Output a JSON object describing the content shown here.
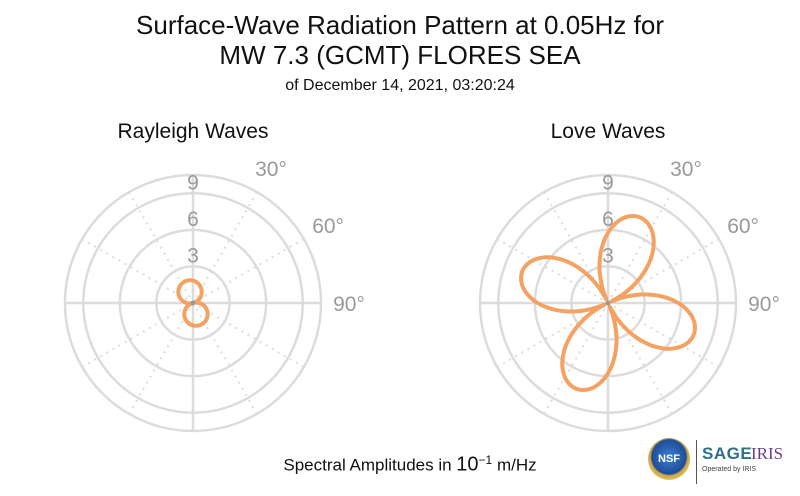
{
  "title": {
    "line1": "Surface-Wave Radiation Pattern at 0.05Hz for",
    "line2": "MW 7.3 (GCMT) FLORES SEA",
    "line3": "of December 14, 2021, 03:20:24"
  },
  "footer": {
    "prefix": "Spectral Amplitudes in ",
    "unit_base": "10",
    "unit_exp": "−1",
    "unit_suffix": " m/Hz"
  },
  "logos": {
    "nsf": "NSF",
    "sage": "SAGE",
    "iris": "IRIS",
    "operated": "Operated by IRIS"
  },
  "colors": {
    "pattern": "#f4a263",
    "grid": "#dcdcdc",
    "label": "#999999"
  },
  "chart_data": [
    {
      "type": "polar-line",
      "title": "Rayleigh Waves",
      "radial_ticks": [
        "3",
        "6",
        "9"
      ],
      "radial_tick_values": [
        3,
        6,
        9
      ],
      "radial_max": 10.5,
      "angle_ticks": [
        "30°",
        "60°",
        "90°"
      ],
      "angle_tick_values": [
        30,
        60,
        90
      ],
      "grid": true,
      "series": [
        {
          "shape": "two-lobe",
          "lobe_axis_deg": 165,
          "peak_amplitude": 1.9,
          "near_zero": 0.05
        }
      ]
    },
    {
      "type": "polar-line",
      "title": "Love Waves",
      "radial_ticks": [
        "3",
        "6",
        "9"
      ],
      "radial_tick_values": [
        3,
        6,
        9
      ],
      "radial_max": 10.5,
      "angle_ticks": [
        "30°",
        "60°",
        "90°"
      ],
      "angle_tick_values": [
        30,
        60,
        90
      ],
      "grid": true,
      "series": [
        {
          "shape": "four-lobe",
          "lobe_directions_deg": [
            20,
            110,
            200,
            290
          ],
          "peak_amplitude": 7.5,
          "near_zero": 0.1
        }
      ]
    }
  ]
}
